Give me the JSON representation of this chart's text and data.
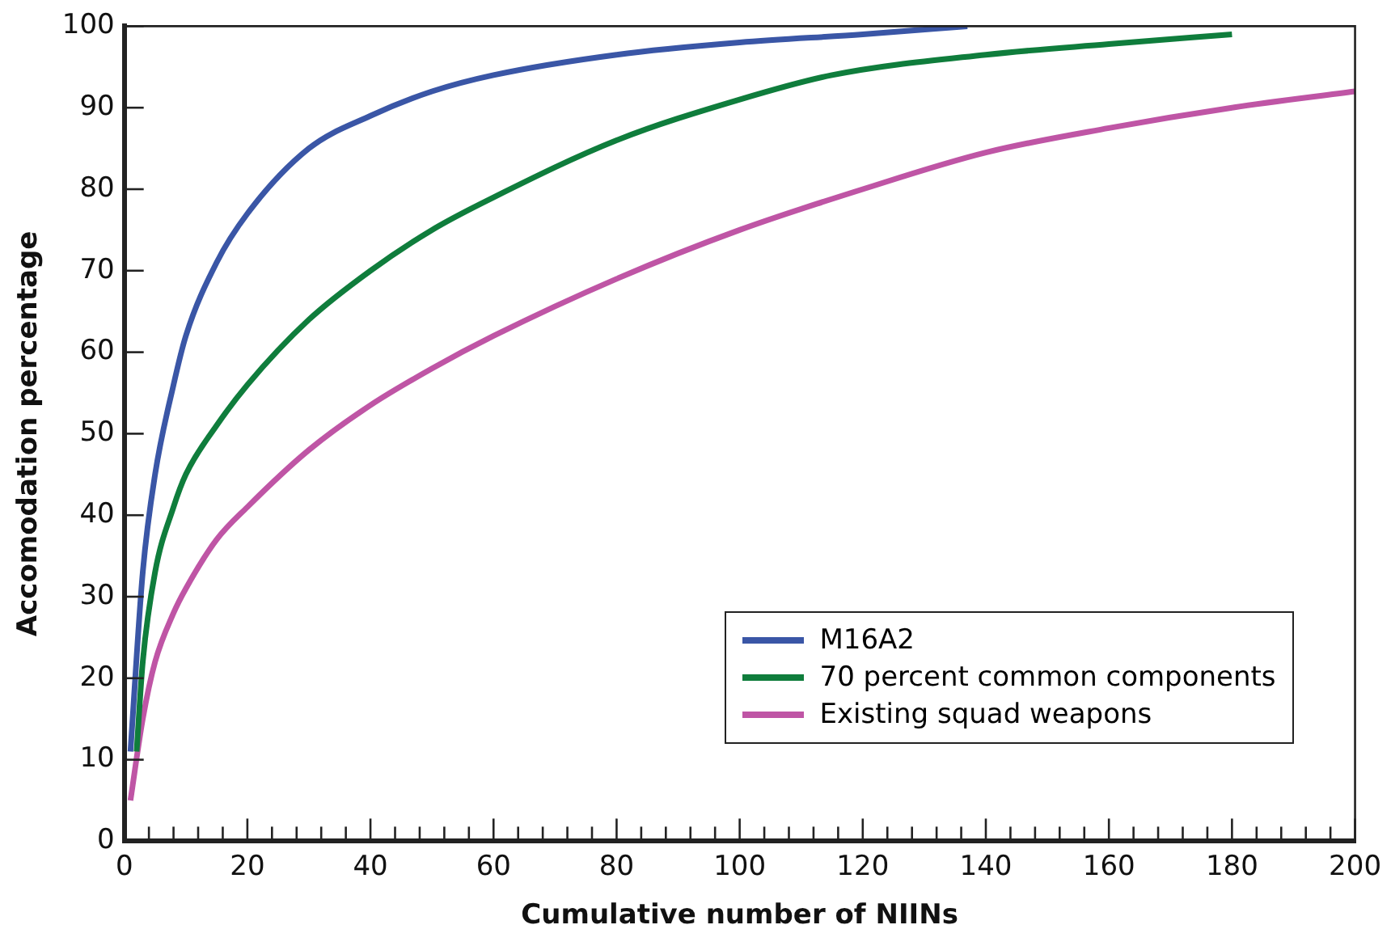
{
  "chart_data": {
    "type": "line",
    "xlabel": "Cumulative number of NIINs",
    "ylabel": "Accomodation percentage",
    "xlim": [
      0,
      200
    ],
    "ylim": [
      0,
      100
    ],
    "xticks": [
      0,
      {
        "value": 4,
        "label": null
      },
      {
        "value": 8,
        "label": null
      },
      {
        "value": 12,
        "label": null
      },
      {
        "value": 16,
        "label": null
      },
      20,
      {
        "value": 24,
        "label": null
      },
      {
        "value": 28,
        "label": null
      },
      {
        "value": 32,
        "label": null
      },
      {
        "value": 36,
        "label": null
      },
      40,
      {
        "value": 44,
        "label": null
      },
      {
        "value": 48,
        "label": null
      },
      {
        "value": 52,
        "label": null
      },
      {
        "value": 56,
        "label": null
      },
      60,
      {
        "value": 64,
        "label": null
      },
      {
        "value": 68,
        "label": null
      },
      {
        "value": 72,
        "label": null
      },
      {
        "value": 76,
        "label": null
      },
      80,
      {
        "value": 84,
        "label": null
      },
      {
        "value": 88,
        "label": null
      },
      {
        "value": 92,
        "label": null
      },
      {
        "value": 96,
        "label": null
      },
      100,
      {
        "value": 104,
        "label": null
      },
      {
        "value": 108,
        "label": null
      },
      {
        "value": 112,
        "label": null
      },
      {
        "value": 116,
        "label": null
      },
      120,
      {
        "value": 124,
        "label": null
      },
      {
        "value": 128,
        "label": null
      },
      {
        "value": 132,
        "label": null
      },
      {
        "value": 136,
        "label": null
      },
      140,
      {
        "value": 144,
        "label": null
      },
      {
        "value": 148,
        "label": null
      },
      {
        "value": 152,
        "label": null
      },
      {
        "value": 156,
        "label": null
      },
      160,
      {
        "value": 164,
        "label": null
      },
      {
        "value": 168,
        "label": null
      },
      {
        "value": 172,
        "label": null
      },
      {
        "value": 176,
        "label": null
      },
      180,
      {
        "value": 184,
        "label": null
      },
      {
        "value": 188,
        "label": null
      },
      {
        "value": 192,
        "label": null
      },
      {
        "value": 196,
        "label": null
      },
      200
    ],
    "yticks": [
      0,
      10,
      20,
      30,
      40,
      50,
      60,
      70,
      80,
      90,
      100
    ],
    "grid": false,
    "legend": "bottom right",
    "marker": "none",
    "line_style": "solid",
    "series": [
      {
        "name": "M16A2",
        "color": "#3a56a6",
        "x": [
          1,
          3,
          5,
          8,
          10,
          15,
          20,
          30,
          40,
          50,
          60,
          80,
          100,
          120,
          137
        ],
        "values": [
          11,
          33,
          45,
          56,
          62,
          71,
          77,
          85,
          89,
          92,
          94,
          96.5,
          98,
          99,
          100
        ]
      },
      {
        "name": "70 percent common components",
        "color": "#0f7d3c",
        "x": [
          2,
          3,
          5,
          8,
          10,
          15,
          20,
          30,
          40,
          50,
          60,
          80,
          100,
          115,
          140,
          160,
          180
        ],
        "values": [
          11,
          22,
          33,
          41,
          45,
          51,
          56,
          64,
          70,
          75,
          79,
          86,
          91,
          94,
          96.5,
          97.8,
          99
        ]
      },
      {
        "name": "Existing squad weapons",
        "color": "#bf55a5",
        "x": [
          1,
          3,
          5,
          8,
          10,
          15,
          20,
          30,
          40,
          50,
          60,
          80,
          100,
          120,
          140,
          160,
          180,
          200
        ],
        "values": [
          5,
          15,
          22,
          28,
          31,
          37,
          41,
          48,
          53.5,
          58,
          62,
          69,
          75,
          80,
          84.5,
          87.5,
          90,
          92
        ]
      }
    ]
  }
}
